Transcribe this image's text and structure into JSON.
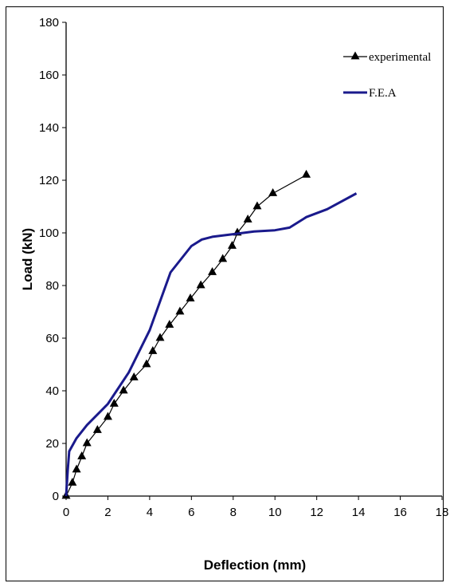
{
  "chart_data": {
    "type": "line",
    "xlabel": "Deflection (mm)",
    "ylabel": "Load (kN)",
    "xlim": [
      0,
      18
    ],
    "ylim": [
      0,
      180
    ],
    "xticks": [
      "0",
      "2",
      "4",
      "6",
      "8",
      "10",
      "12",
      "14",
      "16",
      "18"
    ],
    "yticks": [
      "0",
      "20",
      "40",
      "60",
      "80",
      "100",
      "120",
      "140",
      "160",
      "180"
    ],
    "legend_position": "top-right",
    "grid": false,
    "series": [
      {
        "name": "experimental",
        "color": "#000000",
        "marker": "triangle",
        "points": [
          [
            0,
            0
          ],
          [
            0.3,
            5
          ],
          [
            0.5,
            10
          ],
          [
            0.75,
            15
          ],
          [
            1.0,
            20
          ],
          [
            1.5,
            25
          ],
          [
            2.0,
            30
          ],
          [
            2.3,
            35
          ],
          [
            2.75,
            40
          ],
          [
            3.25,
            45
          ],
          [
            3.85,
            50
          ],
          [
            4.15,
            55
          ],
          [
            4.5,
            60
          ],
          [
            4.95,
            65
          ],
          [
            5.45,
            70
          ],
          [
            5.95,
            75
          ],
          [
            6.45,
            80
          ],
          [
            7.0,
            85
          ],
          [
            7.5,
            90
          ],
          [
            7.95,
            95
          ],
          [
            8.2,
            100
          ],
          [
            8.7,
            105
          ],
          [
            9.15,
            110
          ],
          [
            9.9,
            115
          ],
          [
            11.5,
            122
          ]
        ]
      },
      {
        "name": "F.E.A",
        "color": "#1a1a8c",
        "marker": "none",
        "points": [
          [
            0,
            0
          ],
          [
            0.08,
            10
          ],
          [
            0.15,
            17
          ],
          [
            0.5,
            22
          ],
          [
            1,
            27
          ],
          [
            2,
            35
          ],
          [
            3,
            47
          ],
          [
            4,
            63
          ],
          [
            5,
            85
          ],
          [
            5.5,
            90
          ],
          [
            6,
            95
          ],
          [
            6.5,
            97.5
          ],
          [
            7,
            98.5
          ],
          [
            8,
            99.5
          ],
          [
            9,
            100.5
          ],
          [
            10,
            101
          ],
          [
            10.7,
            102
          ],
          [
            11.5,
            106
          ],
          [
            12.5,
            109
          ],
          [
            13.9,
            115
          ]
        ]
      }
    ]
  }
}
